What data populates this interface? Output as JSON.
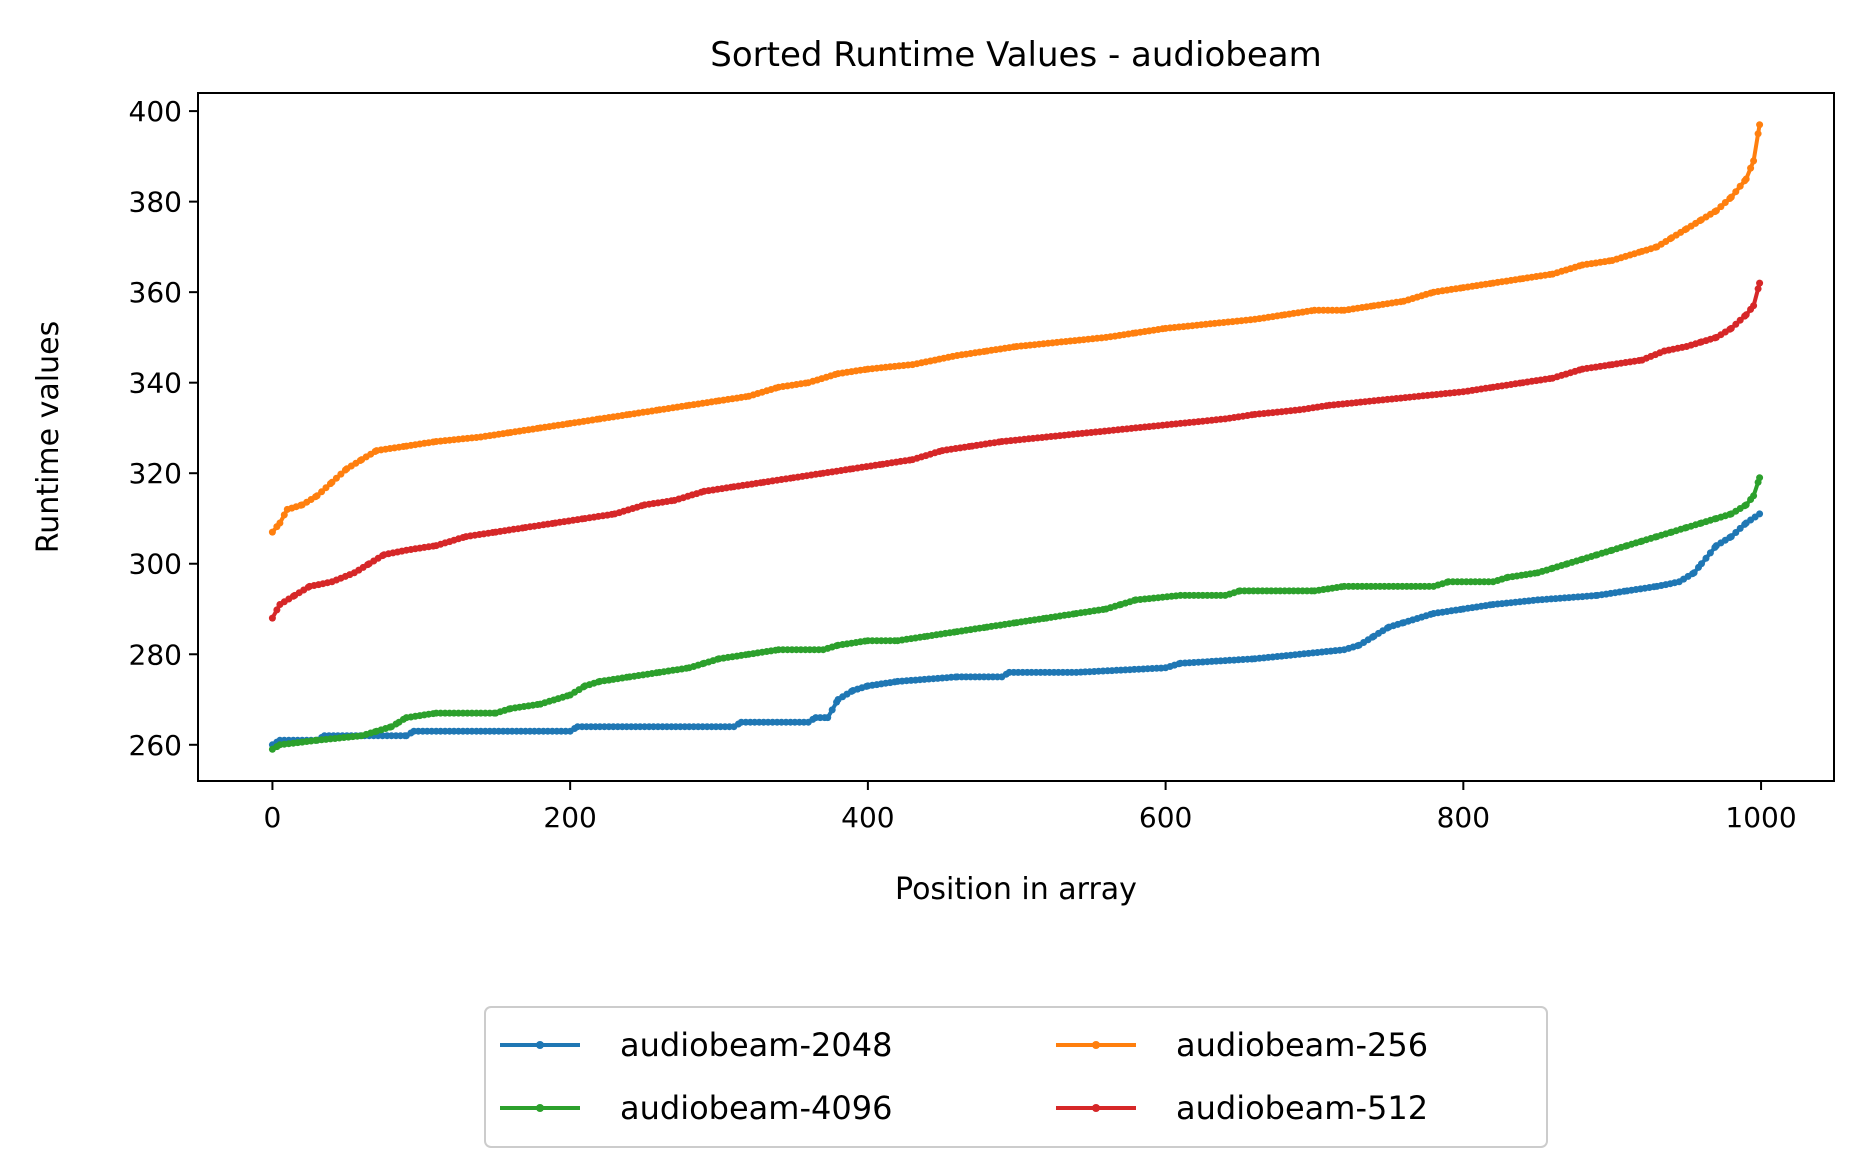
{
  "chart_data": {
    "type": "line",
    "title": "Sorted Runtime Values - audiobeam",
    "xlabel": "Position in array",
    "ylabel": "Runtime values",
    "xlim": [
      -50,
      1049
    ],
    "ylim": [
      252,
      404
    ],
    "xticks": [
      0,
      200,
      400,
      600,
      800,
      1000
    ],
    "yticks": [
      260,
      280,
      300,
      320,
      340,
      360,
      380,
      400
    ],
    "grid": false,
    "legend_position": "bottom-center (below plot), 2 columns",
    "series": [
      {
        "name": "audiobeam-2048",
        "color": "#1f77b4",
        "points": [
          [
            0,
            260
          ],
          [
            5,
            261
          ],
          [
            30,
            261
          ],
          [
            35,
            262
          ],
          [
            90,
            262
          ],
          [
            95,
            263
          ],
          [
            200,
            263
          ],
          [
            205,
            264
          ],
          [
            310,
            264
          ],
          [
            315,
            265
          ],
          [
            360,
            265
          ],
          [
            365,
            266
          ],
          [
            373,
            266
          ],
          [
            380,
            270
          ],
          [
            390,
            272
          ],
          [
            400,
            273
          ],
          [
            420,
            274
          ],
          [
            460,
            275
          ],
          [
            490,
            275
          ],
          [
            495,
            276
          ],
          [
            540,
            276
          ],
          [
            600,
            277
          ],
          [
            610,
            278
          ],
          [
            660,
            279
          ],
          [
            690,
            280
          ],
          [
            720,
            281
          ],
          [
            730,
            282
          ],
          [
            740,
            284
          ],
          [
            750,
            286
          ],
          [
            760,
            287
          ],
          [
            780,
            289
          ],
          [
            800,
            290
          ],
          [
            820,
            291
          ],
          [
            850,
            292
          ],
          [
            890,
            293
          ],
          [
            910,
            294
          ],
          [
            930,
            295
          ],
          [
            945,
            296
          ],
          [
            955,
            298
          ],
          [
            960,
            300
          ],
          [
            970,
            304
          ],
          [
            980,
            306
          ],
          [
            990,
            309
          ],
          [
            999,
            311
          ]
        ]
      },
      {
        "name": "audiobeam-256",
        "color": "#ff7f0e",
        "points": [
          [
            0,
            307
          ],
          [
            5,
            309
          ],
          [
            10,
            312
          ],
          [
            20,
            313
          ],
          [
            30,
            315
          ],
          [
            40,
            318
          ],
          [
            50,
            321
          ],
          [
            60,
            323
          ],
          [
            70,
            325
          ],
          [
            90,
            326
          ],
          [
            110,
            327
          ],
          [
            140,
            328
          ],
          [
            160,
            329
          ],
          [
            180,
            330
          ],
          [
            200,
            331
          ],
          [
            220,
            332
          ],
          [
            240,
            333
          ],
          [
            260,
            334
          ],
          [
            280,
            335
          ],
          [
            300,
            336
          ],
          [
            320,
            337
          ],
          [
            340,
            339
          ],
          [
            360,
            340
          ],
          [
            380,
            342
          ],
          [
            400,
            343
          ],
          [
            430,
            344
          ],
          [
            460,
            346
          ],
          [
            480,
            347
          ],
          [
            500,
            348
          ],
          [
            530,
            349
          ],
          [
            560,
            350
          ],
          [
            580,
            351
          ],
          [
            600,
            352
          ],
          [
            630,
            353
          ],
          [
            660,
            354
          ],
          [
            680,
            355
          ],
          [
            700,
            356
          ],
          [
            720,
            356
          ],
          [
            740,
            357
          ],
          [
            760,
            358
          ],
          [
            780,
            360
          ],
          [
            800,
            361
          ],
          [
            820,
            362
          ],
          [
            840,
            363
          ],
          [
            860,
            364
          ],
          [
            880,
            366
          ],
          [
            900,
            367
          ],
          [
            920,
            369
          ],
          [
            930,
            370
          ],
          [
            940,
            372
          ],
          [
            950,
            374
          ],
          [
            960,
            376
          ],
          [
            970,
            378
          ],
          [
            980,
            381
          ],
          [
            990,
            385
          ],
          [
            995,
            389
          ],
          [
            999,
            397
          ]
        ]
      },
      {
        "name": "audiobeam-4096",
        "color": "#2ca02c",
        "points": [
          [
            0,
            259
          ],
          [
            5,
            260
          ],
          [
            30,
            261
          ],
          [
            60,
            262
          ],
          [
            70,
            263
          ],
          [
            80,
            264
          ],
          [
            85,
            265
          ],
          [
            90,
            266
          ],
          [
            110,
            267
          ],
          [
            150,
            267
          ],
          [
            160,
            268
          ],
          [
            180,
            269
          ],
          [
            200,
            271
          ],
          [
            210,
            273
          ],
          [
            220,
            274
          ],
          [
            240,
            275
          ],
          [
            260,
            276
          ],
          [
            280,
            277
          ],
          [
            290,
            278
          ],
          [
            300,
            279
          ],
          [
            320,
            280
          ],
          [
            340,
            281
          ],
          [
            370,
            281
          ],
          [
            380,
            282
          ],
          [
            400,
            283
          ],
          [
            420,
            283
          ],
          [
            440,
            284
          ],
          [
            460,
            285
          ],
          [
            480,
            286
          ],
          [
            500,
            287
          ],
          [
            520,
            288
          ],
          [
            540,
            289
          ],
          [
            560,
            290
          ],
          [
            570,
            291
          ],
          [
            580,
            292
          ],
          [
            610,
            293
          ],
          [
            640,
            293
          ],
          [
            650,
            294
          ],
          [
            700,
            294
          ],
          [
            720,
            295
          ],
          [
            780,
            295
          ],
          [
            790,
            296
          ],
          [
            820,
            296
          ],
          [
            830,
            297
          ],
          [
            850,
            298
          ],
          [
            860,
            299
          ],
          [
            870,
            300
          ],
          [
            880,
            301
          ],
          [
            890,
            302
          ],
          [
            900,
            303
          ],
          [
            910,
            304
          ],
          [
            920,
            305
          ],
          [
            930,
            306
          ],
          [
            940,
            307
          ],
          [
            950,
            308
          ],
          [
            960,
            309
          ],
          [
            970,
            310
          ],
          [
            980,
            311
          ],
          [
            990,
            313
          ],
          [
            995,
            315
          ],
          [
            999,
            319
          ]
        ]
      },
      {
        "name": "audiobeam-512",
        "color": "#d62728",
        "points": [
          [
            0,
            288
          ],
          [
            5,
            291
          ],
          [
            15,
            293
          ],
          [
            25,
            295
          ],
          [
            40,
            296
          ],
          [
            55,
            298
          ],
          [
            65,
            300
          ],
          [
            75,
            302
          ],
          [
            90,
            303
          ],
          [
            110,
            304
          ],
          [
            130,
            306
          ],
          [
            150,
            307
          ],
          [
            170,
            308
          ],
          [
            190,
            309
          ],
          [
            210,
            310
          ],
          [
            230,
            311
          ],
          [
            250,
            313
          ],
          [
            270,
            314
          ],
          [
            290,
            316
          ],
          [
            310,
            317
          ],
          [
            330,
            318
          ],
          [
            350,
            319
          ],
          [
            370,
            320
          ],
          [
            390,
            321
          ],
          [
            410,
            322
          ],
          [
            430,
            323
          ],
          [
            450,
            325
          ],
          [
            470,
            326
          ],
          [
            490,
            327
          ],
          [
            520,
            328
          ],
          [
            550,
            329
          ],
          [
            580,
            330
          ],
          [
            610,
            331
          ],
          [
            640,
            332
          ],
          [
            660,
            333
          ],
          [
            690,
            334
          ],
          [
            710,
            335
          ],
          [
            740,
            336
          ],
          [
            770,
            337
          ],
          [
            800,
            338
          ],
          [
            820,
            339
          ],
          [
            840,
            340
          ],
          [
            860,
            341
          ],
          [
            880,
            343
          ],
          [
            900,
            344
          ],
          [
            920,
            345
          ],
          [
            935,
            347
          ],
          [
            950,
            348
          ],
          [
            960,
            349
          ],
          [
            970,
            350
          ],
          [
            980,
            352
          ],
          [
            990,
            355
          ],
          [
            995,
            357
          ],
          [
            999,
            362
          ]
        ]
      }
    ]
  }
}
